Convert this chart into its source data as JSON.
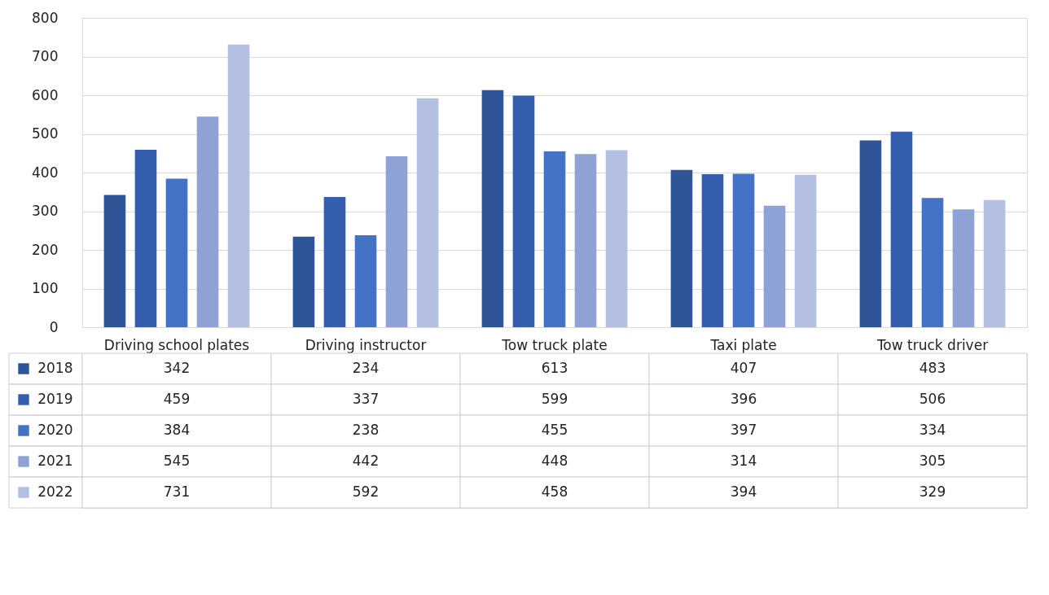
{
  "chart_data": {
    "type": "bar",
    "categories": [
      "Driving school plates",
      "Driving instructor",
      "Tow truck plate",
      "Taxi plate",
      "Tow truck driver"
    ],
    "series": [
      {
        "name": "2018",
        "color": "#2e5597",
        "values": [
          342,
          234,
          613,
          407,
          483
        ]
      },
      {
        "name": "2019",
        "color": "#355fae",
        "values": [
          459,
          337,
          599,
          396,
          506
        ]
      },
      {
        "name": "2020",
        "color": "#4472c4",
        "values": [
          384,
          238,
          455,
          397,
          334
        ]
      },
      {
        "name": "2021",
        "color": "#8ea2d5",
        "values": [
          545,
          442,
          448,
          314,
          305
        ]
      },
      {
        "name": "2022",
        "color": "#b3c0e2",
        "values": [
          731,
          592,
          458,
          394,
          329
        ]
      }
    ],
    "ylim": [
      0,
      800
    ],
    "yticks": [
      0,
      100,
      200,
      300,
      400,
      500,
      600,
      700,
      800
    ],
    "grid": "y",
    "legend": "bottom",
    "data_labels": true
  }
}
